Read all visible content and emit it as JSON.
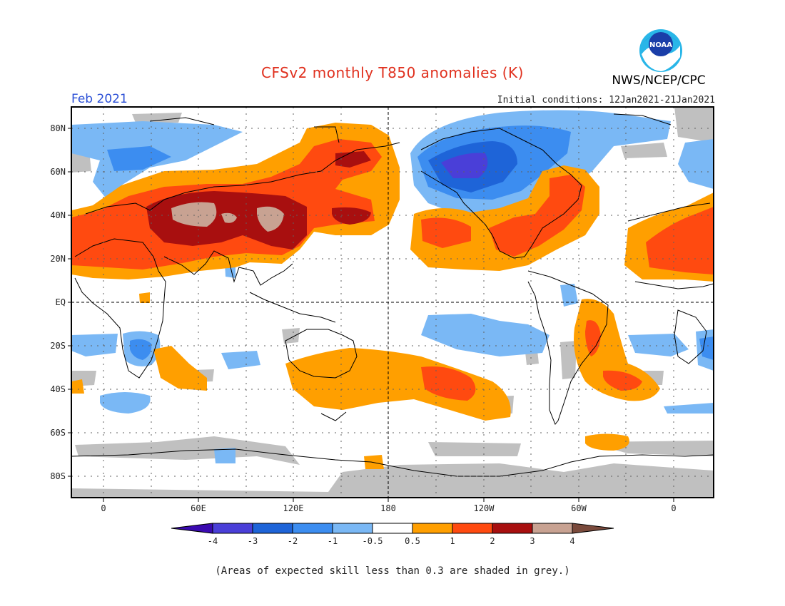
{
  "header": {
    "title": "CFSv2 monthly T850 anomalies (K)",
    "agency": "NWS/NCEP/CPC",
    "logo_text": "NOAA",
    "month": "Feb 2021",
    "initial_conditions": "Initial conditions: 12Jan2021-21Jan2021"
  },
  "map": {
    "lat_labels": [
      "80N",
      "60N",
      "40N",
      "20N",
      "EQ",
      "20S",
      "40S",
      "60S",
      "80S"
    ],
    "lon_labels": [
      "0",
      "60E",
      "120E",
      "180",
      "120W",
      "60W",
      "0"
    ],
    "unit": "K",
    "skill_mask_color": "#c0c0c0"
  },
  "legend": {
    "levels": [
      "-4",
      "-3",
      "-2",
      "-1",
      "-0.5",
      "0.5",
      "1",
      "2",
      "3",
      "4"
    ],
    "colors": [
      "#3a0ab0",
      "#4a3fd8",
      "#1e64d8",
      "#3c8df0",
      "#7ab8f5",
      "#ffffff",
      "#ff9f00",
      "#ff4a10",
      "#a80f0f",
      "#c8a292",
      "#7a4a3c"
    ]
  },
  "footnote": "(Areas of expected skill less than 0.3 are shaded in grey.)"
}
